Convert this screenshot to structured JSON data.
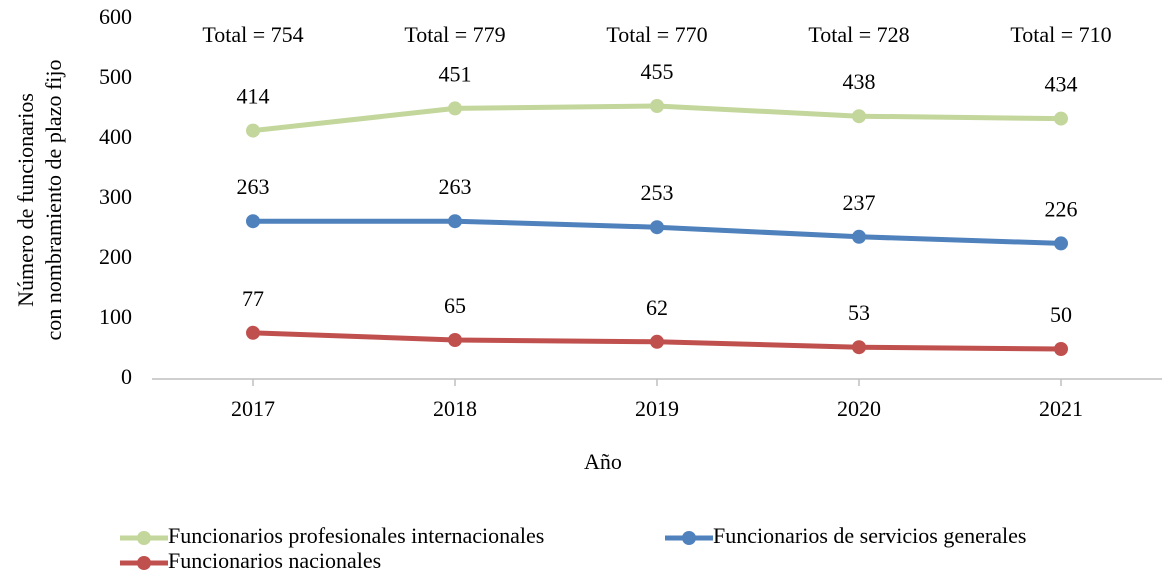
{
  "chart_data": {
    "type": "line",
    "categories": [
      "2017",
      "2018",
      "2019",
      "2020",
      "2021"
    ],
    "series": [
      {
        "name": "Funcionarios profesionales internacionales",
        "color": "#c3d69b",
        "values": [
          414,
          451,
          455,
          438,
          434
        ]
      },
      {
        "name": "Funcionarios de servicios generales",
        "color": "#4f81bd",
        "values": [
          263,
          263,
          253,
          237,
          226
        ]
      },
      {
        "name": "Funcionarios nacionales",
        "color": "#c0504d",
        "values": [
          77,
          65,
          62,
          53,
          50
        ]
      }
    ],
    "annotations": [
      "Total = 754",
      "Total = 779",
      "Total = 770",
      "Total = 728",
      "Total = 710"
    ],
    "xlabel": "Año",
    "ylabel": [
      "Número de funcionarios",
      "con nombramiento de plazo fijo"
    ],
    "ylim": [
      0,
      600
    ],
    "yticks": [
      0,
      100,
      200,
      300,
      400,
      500,
      600
    ],
    "grid": false,
    "legend": "bottom"
  }
}
